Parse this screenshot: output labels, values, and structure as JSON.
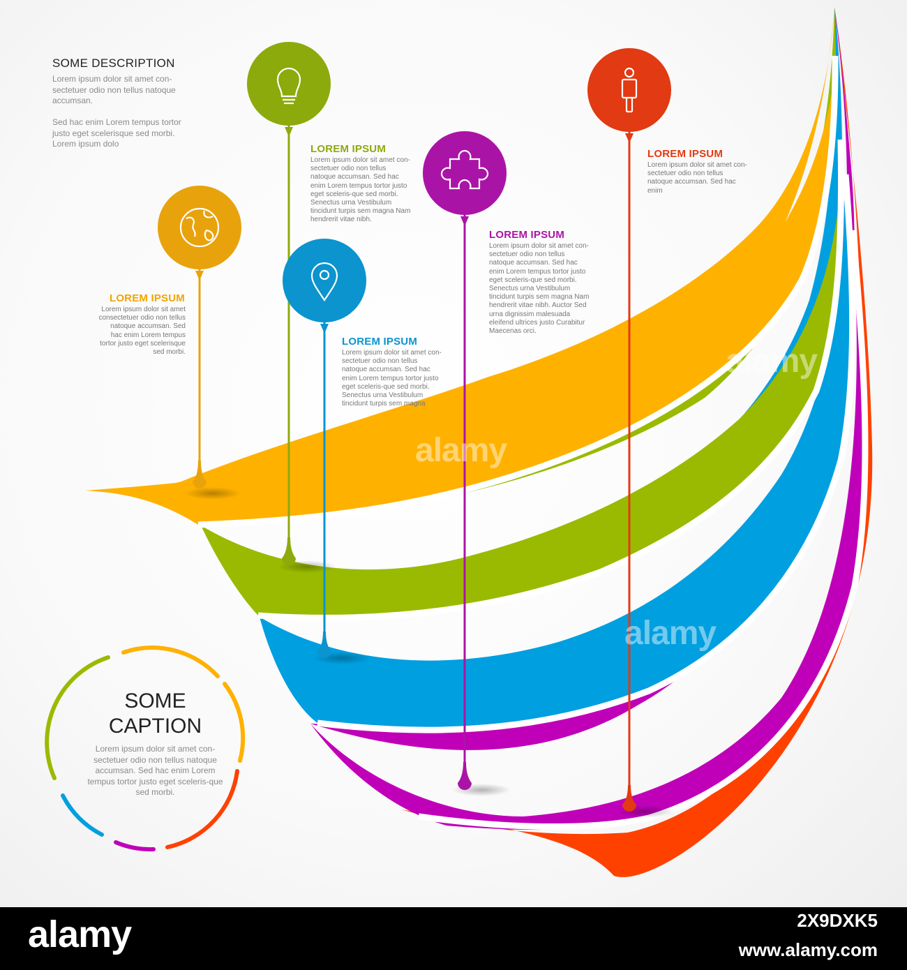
{
  "intro": {
    "title": "SOME DESCRIPTION",
    "para1": "Lorem ipsum dolor sit amet con-sectetuer odio non tellus natoque accumsan.",
    "para2": "Sed hac enim Lorem tempus tortor justo eget scelerisque sed morbi.  Lorem ipsum dolo"
  },
  "items": [
    {
      "title": "LOREM IPSUM",
      "text": "Lorem ipsum dolor sit amet consectetuer odio non tellus natoque accumsan. Sed hac enim Lorem tempus tortor justo eget scelerisque sed morbi.",
      "color": "#F0A500",
      "icon": "globe-icon"
    },
    {
      "title": "LOREM IPSUM",
      "text": "Lorem ipsum dolor sit amet con-sectetuer odio non tellus natoque accumsan. Sed hac enim Lorem tempus tortor justo eget sceleris-que sed morbi. Senectus urna Vestibulum tincidunt turpis sem magna Nam hendrerit vitae nibh.",
      "color": "#8DAA0C",
      "icon": "lightbulb-icon"
    },
    {
      "title": "LOREM IPSUM",
      "text": "Lorem ipsum dolor sit amet con-sectetuer odio non tellus natoque accumsan. Sed hac enim Lorem tempus tortor justo eget sceleris-que sed morbi. Senectus urna Vestibulum tincidunt turpis sem magna",
      "color": "#0B94CE",
      "icon": "map-pin-icon"
    },
    {
      "title": "LOREM IPSUM",
      "text": "Lorem ipsum dolor sit amet con-sectetuer odio non tellus natoque accumsan. Sed hac enim Lorem tempus tortor justo eget sceleris-que sed morbi. Senectus urna Vestibulum tincidunt turpis sem magna Nam hendrerit vitae nibh. Auctor Sed urna dignissim malesuada eleifend ultrices justo Curabitur Maecenas orci.",
      "color": "#AA14A6",
      "icon": "puzzle-icon"
    },
    {
      "title": "LOREM IPSUM",
      "text": "Lorem ipsum dolor sit amet con-sectetuer odio non tellus natoque accumsan. Sed hac enim",
      "color": "#E23A12",
      "icon": "person-icon"
    }
  ],
  "caption": {
    "title": "SOME CAPTION",
    "text": "Lorem ipsum dolor sit amet con-sectetuer odio non tellus natoque accumsan. Sed hac enim Lorem tempus tortor justo eget sceleris-que sed morbi."
  },
  "band_colors": [
    "#FFB100",
    "#99BA00",
    "#009FE0",
    "#C000B8",
    "#FF4100"
  ],
  "footer": {
    "logo": "alamy",
    "image_id": "2X9DXK5",
    "site": "www.alamy.com",
    "watermark": "alamy"
  }
}
